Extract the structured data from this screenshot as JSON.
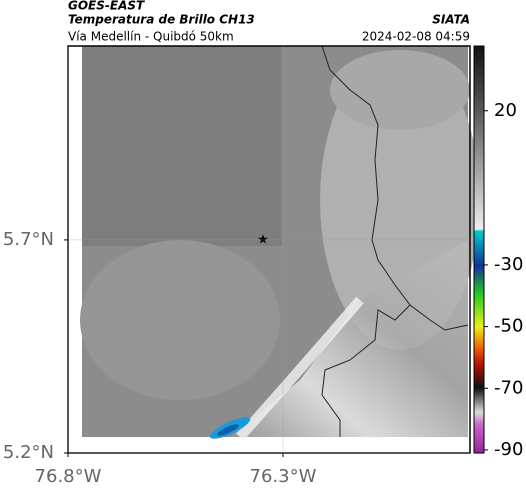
{
  "header": {
    "title": "GOES-EAST",
    "subtitle": "Temperatura de Brillo CH13",
    "route": "Vía Medellín - Quibdó 50km",
    "source": "SIATA",
    "datetime": "2024-02-08 04:59"
  },
  "map": {
    "xlim": [
      -76.8,
      -75.865
    ],
    "ylim": [
      5.2,
      6.155
    ],
    "xticks": [
      {
        "value": -76.8,
        "label": "76.8°W"
      },
      {
        "value": -76.3,
        "label": "76.3°W"
      }
    ],
    "yticks": [
      {
        "value": 5.7,
        "label": "5.7°N"
      },
      {
        "value": 5.2,
        "label": "5.2°N"
      }
    ]
  },
  "colorbar": {
    "range": [
      -91,
      41
    ],
    "ticks": [
      20,
      -30,
      -50,
      -70,
      -90
    ]
  }
}
